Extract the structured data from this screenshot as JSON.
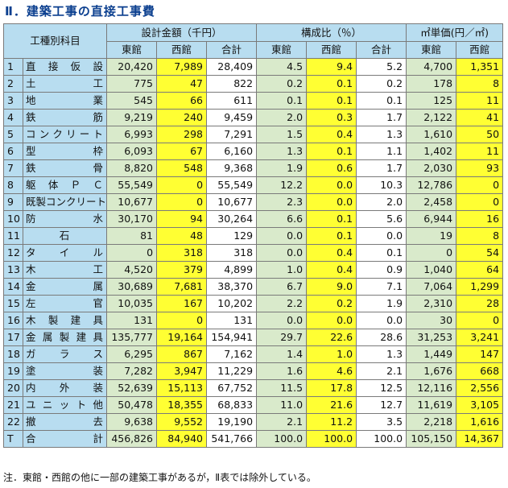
{
  "title": "Ⅱ．建築工事の直接工事費",
  "headers": {
    "category": "工種別科目",
    "amount_group": "設計金額（千円）",
    "ratio_group": "構成比（％）",
    "unit_group": "㎡単価(円／㎡)",
    "east": "東館",
    "west": "西館",
    "total": "合計"
  },
  "rows": [
    {
      "no": "1",
      "item": "直接仮設",
      "east": "20,420",
      "west": "7,989",
      "total": "28,409",
      "r_east": "4.5",
      "r_west": "9.4",
      "r_total": "5.2",
      "u_east": "4,700",
      "u_west": "1,351"
    },
    {
      "no": "2",
      "item": "土工",
      "east": "775",
      "west": "47",
      "total": "822",
      "r_east": "0.2",
      "r_west": "0.1",
      "r_total": "0.2",
      "u_east": "178",
      "u_west": "8"
    },
    {
      "no": "3",
      "item": "地業",
      "east": "545",
      "west": "66",
      "total": "611",
      "r_east": "0.1",
      "r_west": "0.1",
      "r_total": "0.1",
      "u_east": "125",
      "u_west": "11"
    },
    {
      "no": "4",
      "item": "鉄筋",
      "east": "9,219",
      "west": "240",
      "total": "9,459",
      "r_east": "2.0",
      "r_west": "0.3",
      "r_total": "1.7",
      "u_east": "2,122",
      "u_west": "41"
    },
    {
      "no": "5",
      "item": "コンクリート",
      "east": "6,993",
      "west": "298",
      "total": "7,291",
      "r_east": "1.5",
      "r_west": "0.4",
      "r_total": "1.3",
      "u_east": "1,610",
      "u_west": "50"
    },
    {
      "no": "6",
      "item": "型枠",
      "east": "6,093",
      "west": "67",
      "total": "6,160",
      "r_east": "1.3",
      "r_west": "0.1",
      "r_total": "1.1",
      "u_east": "1,402",
      "u_west": "11"
    },
    {
      "no": "7",
      "item": "鉄骨",
      "east": "8,820",
      "west": "548",
      "total": "9,368",
      "r_east": "1.9",
      "r_west": "0.6",
      "r_total": "1.7",
      "u_east": "2,030",
      "u_west": "93"
    },
    {
      "no": "8",
      "item": "躯体ＰＣ",
      "east": "55,549",
      "west": "0",
      "total": "55,549",
      "r_east": "12.2",
      "r_west": "0.0",
      "r_total": "10.3",
      "u_east": "12,786",
      "u_west": "0"
    },
    {
      "no": "9",
      "item": "既製コンクリート",
      "east": "10,677",
      "west": "0",
      "total": "10,677",
      "r_east": "2.3",
      "r_west": "0.0",
      "r_total": "2.0",
      "u_east": "2,458",
      "u_west": "0"
    },
    {
      "no": "10",
      "item": "防水",
      "east": "30,170",
      "west": "94",
      "total": "30,264",
      "r_east": "6.6",
      "r_west": "0.1",
      "r_total": "5.6",
      "u_east": "6,944",
      "u_west": "16"
    },
    {
      "no": "11",
      "item": "石",
      "east": "81",
      "west": "48",
      "total": "129",
      "r_east": "0.0",
      "r_west": "0.1",
      "r_total": "0.0",
      "u_east": "19",
      "u_west": "8"
    },
    {
      "no": "12",
      "item": "タイル",
      "east": "0",
      "west": "318",
      "total": "318",
      "r_east": "0.0",
      "r_west": "0.4",
      "r_total": "0.1",
      "u_east": "0",
      "u_west": "54"
    },
    {
      "no": "13",
      "item": "木工",
      "east": "4,520",
      "west": "379",
      "total": "4,899",
      "r_east": "1.0",
      "r_west": "0.4",
      "r_total": "0.9",
      "u_east": "1,040",
      "u_west": "64"
    },
    {
      "no": "14",
      "item": "金属",
      "east": "30,689",
      "west": "7,681",
      "total": "38,370",
      "r_east": "6.7",
      "r_west": "9.0",
      "r_total": "7.1",
      "u_east": "7,064",
      "u_west": "1,299"
    },
    {
      "no": "15",
      "item": "左官",
      "east": "10,035",
      "west": "167",
      "total": "10,202",
      "r_east": "2.2",
      "r_west": "0.2",
      "r_total": "1.9",
      "u_east": "2,310",
      "u_west": "28"
    },
    {
      "no": "16",
      "item": "木製建具",
      "east": "131",
      "west": "0",
      "total": "131",
      "r_east": "0.0",
      "r_west": "0.0",
      "r_total": "0.0",
      "u_east": "30",
      "u_west": "0"
    },
    {
      "no": "17",
      "item": "金属製建具",
      "east": "135,777",
      "west": "19,164",
      "total": "154,941",
      "r_east": "29.7",
      "r_west": "22.6",
      "r_total": "28.6",
      "u_east": "31,253",
      "u_west": "3,241"
    },
    {
      "no": "18",
      "item": "ガラス",
      "east": "6,295",
      "west": "867",
      "total": "7,162",
      "r_east": "1.4",
      "r_west": "1.0",
      "r_total": "1.3",
      "u_east": "1,449",
      "u_west": "147"
    },
    {
      "no": "19",
      "item": "塗装",
      "east": "7,282",
      "west": "3,947",
      "total": "11,229",
      "r_east": "1.6",
      "r_west": "4.6",
      "r_total": "2.1",
      "u_east": "1,676",
      "u_west": "668"
    },
    {
      "no": "20",
      "item": "内外装",
      "east": "52,639",
      "west": "15,113",
      "total": "67,752",
      "r_east": "11.5",
      "r_west": "17.8",
      "r_total": "12.5",
      "u_east": "12,116",
      "u_west": "2,556"
    },
    {
      "no": "21",
      "item": "ユニット他",
      "east": "50,478",
      "west": "18,355",
      "total": "68,833",
      "r_east": "11.0",
      "r_west": "21.6",
      "r_total": "12.7",
      "u_east": "11,619",
      "u_west": "3,105"
    },
    {
      "no": "22",
      "item": "撤去",
      "east": "9,638",
      "west": "9,552",
      "total": "19,190",
      "r_east": "2.1",
      "r_west": "11.2",
      "r_total": "3.5",
      "u_east": "2,218",
      "u_west": "1,616"
    },
    {
      "no": "T",
      "item": "合計",
      "east": "456,826",
      "west": "84,940",
      "total": "541,766",
      "r_east": "100.0",
      "r_west": "100.0",
      "r_total": "100.0",
      "u_east": "105,150",
      "u_west": "14,367"
    }
  ],
  "note": "注．東館・西館の他に一部の建築工事があるが，Ⅱ表では除外している。",
  "colors": {
    "header": "#b8ddf0",
    "east": "#d9eacb",
    "west": "#ffff33",
    "total": "#ffffff",
    "title": "#0b3f8f"
  }
}
